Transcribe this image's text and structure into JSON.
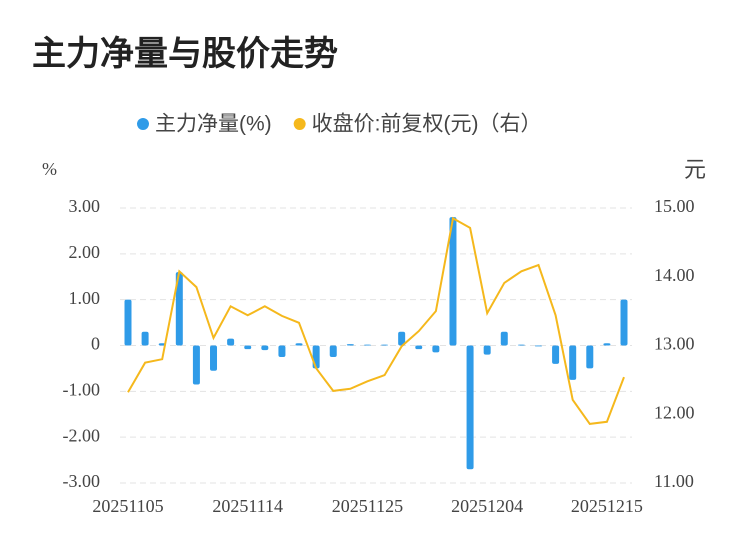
{
  "chart_data": {
    "type": "bar-line",
    "title": "主力净量与股价走势",
    "y_label": "%",
    "y2_label": "元",
    "categories": [
      "20251105",
      null,
      null,
      null,
      null,
      null,
      null,
      "20251114",
      null,
      null,
      null,
      null,
      null,
      null,
      "20251125",
      null,
      null,
      null,
      null,
      null,
      null,
      "20251204",
      null,
      null,
      null,
      null,
      null,
      null,
      "20251215",
      null
    ],
    "series": [
      {
        "name": "主力净量(%)",
        "color": "#2f9be8",
        "type": "bar",
        "values": [
          1.0,
          0.3,
          0.05,
          1.6,
          -0.85,
          -0.55,
          0.15,
          -0.08,
          -0.1,
          -0.25,
          0.05,
          -0.5,
          -0.25,
          0.03,
          0.02,
          0.02,
          0.3,
          -0.08,
          -0.15,
          2.8,
          -2.7,
          -0.2,
          0.3,
          0.02,
          -0.02,
          -0.4,
          -0.75,
          -0.5,
          0.05,
          1.0
        ]
      },
      {
        "name": "收盘价:前复权(元)（右）",
        "color": "#f5b81c",
        "type": "line",
        "axis": "y2",
        "values": [
          12.32,
          12.75,
          12.8,
          14.08,
          13.85,
          13.11,
          13.57,
          13.44,
          13.57,
          13.43,
          13.33,
          12.67,
          12.34,
          12.37,
          12.48,
          12.57,
          12.99,
          13.21,
          13.5,
          14.85,
          14.71,
          13.47,
          13.91,
          14.08,
          14.17,
          13.44,
          12.21,
          11.86,
          11.89,
          12.54
        ]
      }
    ],
    "ylim": [
      -3,
      3
    ],
    "yticks": [
      {
        "value": 3,
        "label": "3.00"
      },
      {
        "value": 2,
        "label": "2.00"
      },
      {
        "value": 1,
        "label": "1.00"
      },
      0,
      {
        "value": -1,
        "label": "-1.00"
      },
      {
        "value": -2,
        "label": "-2.00"
      },
      {
        "value": -3,
        "label": "-3.00"
      }
    ],
    "y2lim": [
      11,
      15
    ],
    "y2ticks": [
      {
        "value": 15,
        "label": "15.00"
      },
      {
        "value": 14,
        "label": "14.00"
      },
      {
        "value": 13,
        "label": "13.00"
      },
      {
        "value": 12,
        "label": "12.00"
      },
      {
        "value": 11,
        "label": "11.00"
      }
    ],
    "grid": true
  }
}
